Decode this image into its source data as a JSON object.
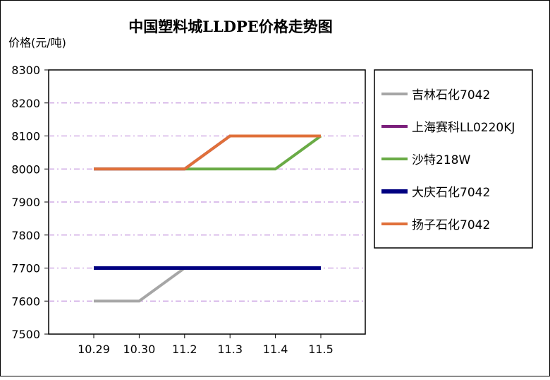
{
  "chart_data": {
    "type": "line",
    "title": "中国塑料城LLDPE价格走势图",
    "ylabel": "价格(元/吨)",
    "xlabel": "",
    "categories": [
      "10.29",
      "10.30",
      "11.2",
      "11.3",
      "11.4",
      "11.5"
    ],
    "ylim": [
      7500,
      8300
    ],
    "yticks": [
      7500,
      7600,
      7700,
      7800,
      7900,
      8000,
      8100,
      8200,
      8300
    ],
    "grid": true,
    "legend_position": "right",
    "series": [
      {
        "name": "吉林石化7042",
        "color": "#a6a6a6",
        "values": [
          7600,
          7600,
          7700,
          7700,
          7700,
          7700
        ]
      },
      {
        "name": "上海赛科LL0220KJ",
        "color": "#7b1f7b",
        "values": [
          8000,
          8000,
          8000,
          8100,
          8100,
          8100
        ]
      },
      {
        "name": "沙特218W",
        "color": "#6aab46",
        "values": [
          8000,
          8000,
          8000,
          8000,
          8000,
          8100
        ]
      },
      {
        "name": "大庆石化7042",
        "color": "#000080",
        "values": [
          7700,
          7700,
          7700,
          7700,
          7700,
          7700
        ]
      },
      {
        "name": "扬子石化7042",
        "color": "#e0703a",
        "values": [
          8000,
          8000,
          8000,
          8100,
          8100,
          8100
        ]
      }
    ]
  }
}
